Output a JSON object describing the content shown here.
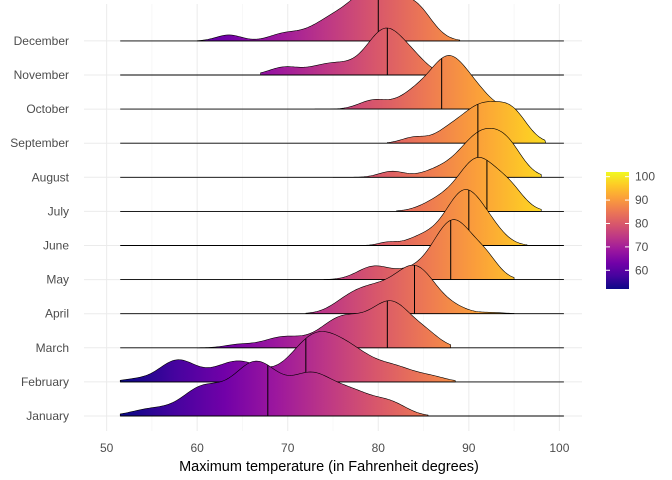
{
  "chart_data": {
    "type": "area",
    "subtype": "ridgeline",
    "title": "",
    "xlabel": "Maximum temperature (in Fahrenheit degrees)",
    "ylabel": "",
    "xlim": [
      47.5,
      102.5
    ],
    "x_ticks": [
      50,
      60,
      70,
      80,
      90,
      100
    ],
    "x_tick_labels": [
      "50",
      "60",
      "70",
      "80",
      "90",
      "100"
    ],
    "grid": true,
    "baseline_x_range": [
      51.5,
      100.5
    ],
    "categories": [
      "January",
      "February",
      "March",
      "April",
      "May",
      "June",
      "July",
      "August",
      "September",
      "October",
      "November",
      "December"
    ],
    "series": [
      {
        "name": "January",
        "median": 67.8,
        "range": [
          51.5,
          85.5
        ],
        "peaks": [
          [
            55,
            0.12,
            2.2
          ],
          [
            60.5,
            0.45,
            2.2
          ],
          [
            66.5,
            0.9,
            2.6
          ],
          [
            72.5,
            0.6,
            2.2
          ],
          [
            77,
            0.4,
            2.5
          ],
          [
            81.5,
            0.18,
            1.8
          ]
        ]
      },
      {
        "name": "February",
        "median": 72.0,
        "range": [
          51.5,
          88.5
        ],
        "peaks": [
          [
            53,
            0.04,
            1.5
          ],
          [
            57.8,
            0.36,
            2.0
          ],
          [
            64.5,
            0.35,
            2.6
          ],
          [
            72.8,
            0.7,
            2.5
          ],
          [
            77,
            0.46,
            2.5
          ],
          [
            82,
            0.22,
            2.2
          ],
          [
            86,
            0.07,
            1.6
          ]
        ]
      },
      {
        "name": "March",
        "median": 81.0,
        "range": [
          60.0,
          88.0
        ],
        "peaks": [
          [
            64.5,
            0.05,
            1.5
          ],
          [
            69.5,
            0.18,
            2.2
          ],
          [
            76,
            0.5,
            2.4
          ],
          [
            81.5,
            0.75,
            2.3
          ],
          [
            85.5,
            0.15,
            1.5
          ]
        ]
      },
      {
        "name": "April",
        "median": 84.0,
        "range": [
          72.0,
          95.0
        ],
        "peaks": [
          [
            76.5,
            0.13,
            1.8
          ],
          [
            79.5,
            0.4,
            2.4
          ],
          [
            84.2,
            0.75,
            2.2
          ],
          [
            88.5,
            0.07,
            1.5
          ],
          [
            92.5,
            0.02,
            1.4
          ]
        ]
      },
      {
        "name": "May",
        "median": 88.0,
        "range": [
          74.0,
          95.0
        ],
        "peaks": [
          [
            79.5,
            0.22,
            1.8
          ],
          [
            83.5,
            0.12,
            1.8
          ],
          [
            88.3,
            1.0,
            2.2
          ],
          [
            92,
            0.25,
            1.4
          ]
        ]
      },
      {
        "name": "June",
        "median": 90.0,
        "range": [
          78.0,
          96.5
        ],
        "peaks": [
          [
            81,
            0.05,
            1.0
          ],
          [
            85,
            0.15,
            1.8
          ],
          [
            89.5,
            0.9,
            2.0
          ],
          [
            92.5,
            0.2,
            1.6
          ]
        ]
      },
      {
        "name": "July",
        "median": 92.0,
        "range": [
          82.0,
          98.0
        ],
        "peaks": [
          [
            87,
            0.2,
            2.0
          ],
          [
            91,
            0.85,
            2.0
          ],
          [
            94.5,
            0.35,
            1.6
          ]
        ]
      },
      {
        "name": "August",
        "median": 91.0,
        "range": [
          75.0,
          98.0
        ],
        "peaks": [
          [
            81.5,
            0.1,
            1.4
          ],
          [
            86.5,
            0.1,
            1.8
          ],
          [
            91.5,
            0.75,
            2.4
          ],
          [
            94.5,
            0.3,
            1.6
          ]
        ]
      },
      {
        "name": "September",
        "median": 91.0,
        "range": [
          81.0,
          98.5
        ],
        "peaks": [
          [
            84,
            0.1,
            1.4
          ],
          [
            87.5,
            0.1,
            1.4
          ],
          [
            91.5,
            0.65,
            2.5
          ],
          [
            95,
            0.35,
            1.6
          ]
        ]
      },
      {
        "name": "October",
        "median": 87.0,
        "range": [
          73.0,
          95.0
        ],
        "peaks": [
          [
            79.5,
            0.15,
            1.6
          ],
          [
            84,
            0.25,
            1.8
          ],
          [
            87.8,
            0.85,
            2.0
          ],
          [
            91,
            0.2,
            1.6
          ]
        ]
      },
      {
        "name": "November",
        "median": 81.0,
        "range": [
          67.0,
          90.0
        ],
        "peaks": [
          [
            69.5,
            0.12,
            1.6
          ],
          [
            75,
            0.2,
            2.5
          ],
          [
            80.8,
            0.75,
            2.0
          ],
          [
            84,
            0.2,
            1.6
          ]
        ]
      },
      {
        "name": "December",
        "median": 80.0,
        "range": [
          60.0,
          89.0
        ],
        "peaks": [
          [
            63.5,
            0.1,
            1.4
          ],
          [
            69.5,
            0.1,
            1.6
          ],
          [
            75.5,
            0.4,
            2.8
          ],
          [
            80,
            0.8,
            2.3
          ],
          [
            84.2,
            0.5,
            1.8
          ]
        ]
      }
    ],
    "fill": "gradient by x value (plasma colormap)",
    "colorbar": {
      "range": [
        52,
        102
      ],
      "ticks": [
        60,
        70,
        80,
        90,
        100
      ],
      "tick_labels": [
        "60",
        "70",
        "80",
        "90",
        "100"
      ],
      "colors": [
        "#0d0887",
        "#46039f",
        "#7201a8",
        "#9c179e",
        "#bd3786",
        "#d8576b",
        "#ed7953",
        "#fb9f3a",
        "#fdca26",
        "#f0f921"
      ],
      "placement": "right"
    }
  }
}
